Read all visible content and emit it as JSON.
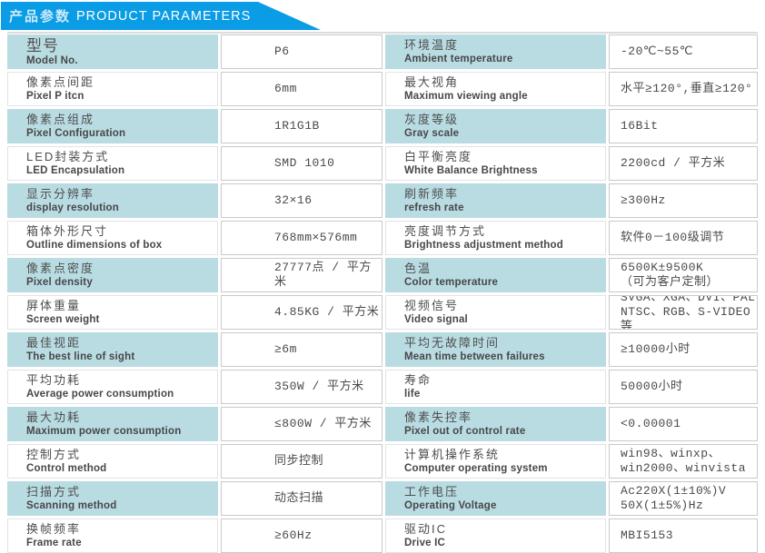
{
  "header": {
    "title_zh": "产品参数",
    "title_en": "PRODUCT PARAMETERS"
  },
  "colors": {
    "banner_blue": "#0a9ce4",
    "cell_blue": "#b9dce3",
    "value_border": "#c9c9c9"
  },
  "rows": [
    {
      "left": {
        "zh": "型号",
        "en": "Model No.",
        "value": "P6"
      },
      "right": {
        "zh": "环境温度",
        "en": "Ambient temperature",
        "value": "-20℃~55℃"
      }
    },
    {
      "left": {
        "zh": "像素点间距",
        "en": "Pixel P itcn",
        "value": "6mm"
      },
      "right": {
        "zh": "最大视角",
        "en": "Maximum viewing angle",
        "value": "水平≥120°,垂直≥120°"
      }
    },
    {
      "left": {
        "zh": "像素点组成",
        "en": "Pixel Configuration",
        "value": "1R1G1B"
      },
      "right": {
        "zh": "灰度等级",
        "en": "Gray scale",
        "value": "16Bit"
      }
    },
    {
      "left": {
        "zh": "LED封装方式",
        "en": "LED Encapsulation",
        "value": "SMD 1010"
      },
      "right": {
        "zh": "白平衡亮度",
        "en": "White Balance Brightness",
        "value": "2200cd / 平方米"
      }
    },
    {
      "left": {
        "zh": "显示分辨率",
        "en": "display resolution",
        "value": "32×16"
      },
      "right": {
        "zh": "刷新频率",
        "en": "refresh rate",
        "value": "≥300Hz"
      }
    },
    {
      "left": {
        "zh": "箱体外形尺寸",
        "en": "Outline dimensions of box",
        "value": "768mm×576mm"
      },
      "right": {
        "zh": "亮度调节方式",
        "en": "Brightness adjustment method",
        "value": "软件0－100级调节"
      }
    },
    {
      "left": {
        "zh": "像素点密度",
        "en": "Pixel density",
        "value": "27777点 / 平方米"
      },
      "right": {
        "zh": "色温",
        "en": "Color temperature",
        "value": "6500K±9500K\n（可为客户定制）"
      }
    },
    {
      "left": {
        "zh": "屏体重量",
        "en": "Screen weight",
        "value": "4.85KG / 平方米"
      },
      "right": {
        "zh": "视频信号",
        "en": "Video signal",
        "value": "SVGA、XGA、DVI、PAL\nNTSC、RGB、S-VIDEO等"
      }
    },
    {
      "left": {
        "zh": "最佳视距",
        "en": "The best line of sight",
        "value": "≥6m"
      },
      "right": {
        "zh": "平均无故障时间",
        "en": "Mean time between failures",
        "value": "≥10000小时"
      }
    },
    {
      "left": {
        "zh": "平均功耗",
        "en": "Average power consumption",
        "value": "350W / 平方米"
      },
      "right": {
        "zh": "寿命",
        "en": "life",
        "value": "50000小时"
      }
    },
    {
      "left": {
        "zh": "最大功耗",
        "en": "Maximum power consumption",
        "value": "≤800W / 平方米"
      },
      "right": {
        "zh": "像素失控率",
        "en": "Pixel out of control rate",
        "value": "<0.00001"
      }
    },
    {
      "left": {
        "zh": "控制方式",
        "en": "Control method",
        "value": "同步控制"
      },
      "right": {
        "zh": "计算机操作系统",
        "en": "Computer operating system",
        "value": "win98、winxp、\nwin2000、winvista"
      }
    },
    {
      "left": {
        "zh": "扫描方式",
        "en": "Scanning method",
        "value": "动态扫描"
      },
      "right": {
        "zh": "工作电压",
        "en": "Operating Voltage",
        "value": "Ac220X(1±10%)V\n50X(1±5%)Hz"
      }
    },
    {
      "left": {
        "zh": "换帧频率",
        "en": "Frame rate",
        "value": "≥60Hz"
      },
      "right": {
        "zh": "驱动IC",
        "en": "Drive IC",
        "value": "MBI5153"
      }
    }
  ]
}
